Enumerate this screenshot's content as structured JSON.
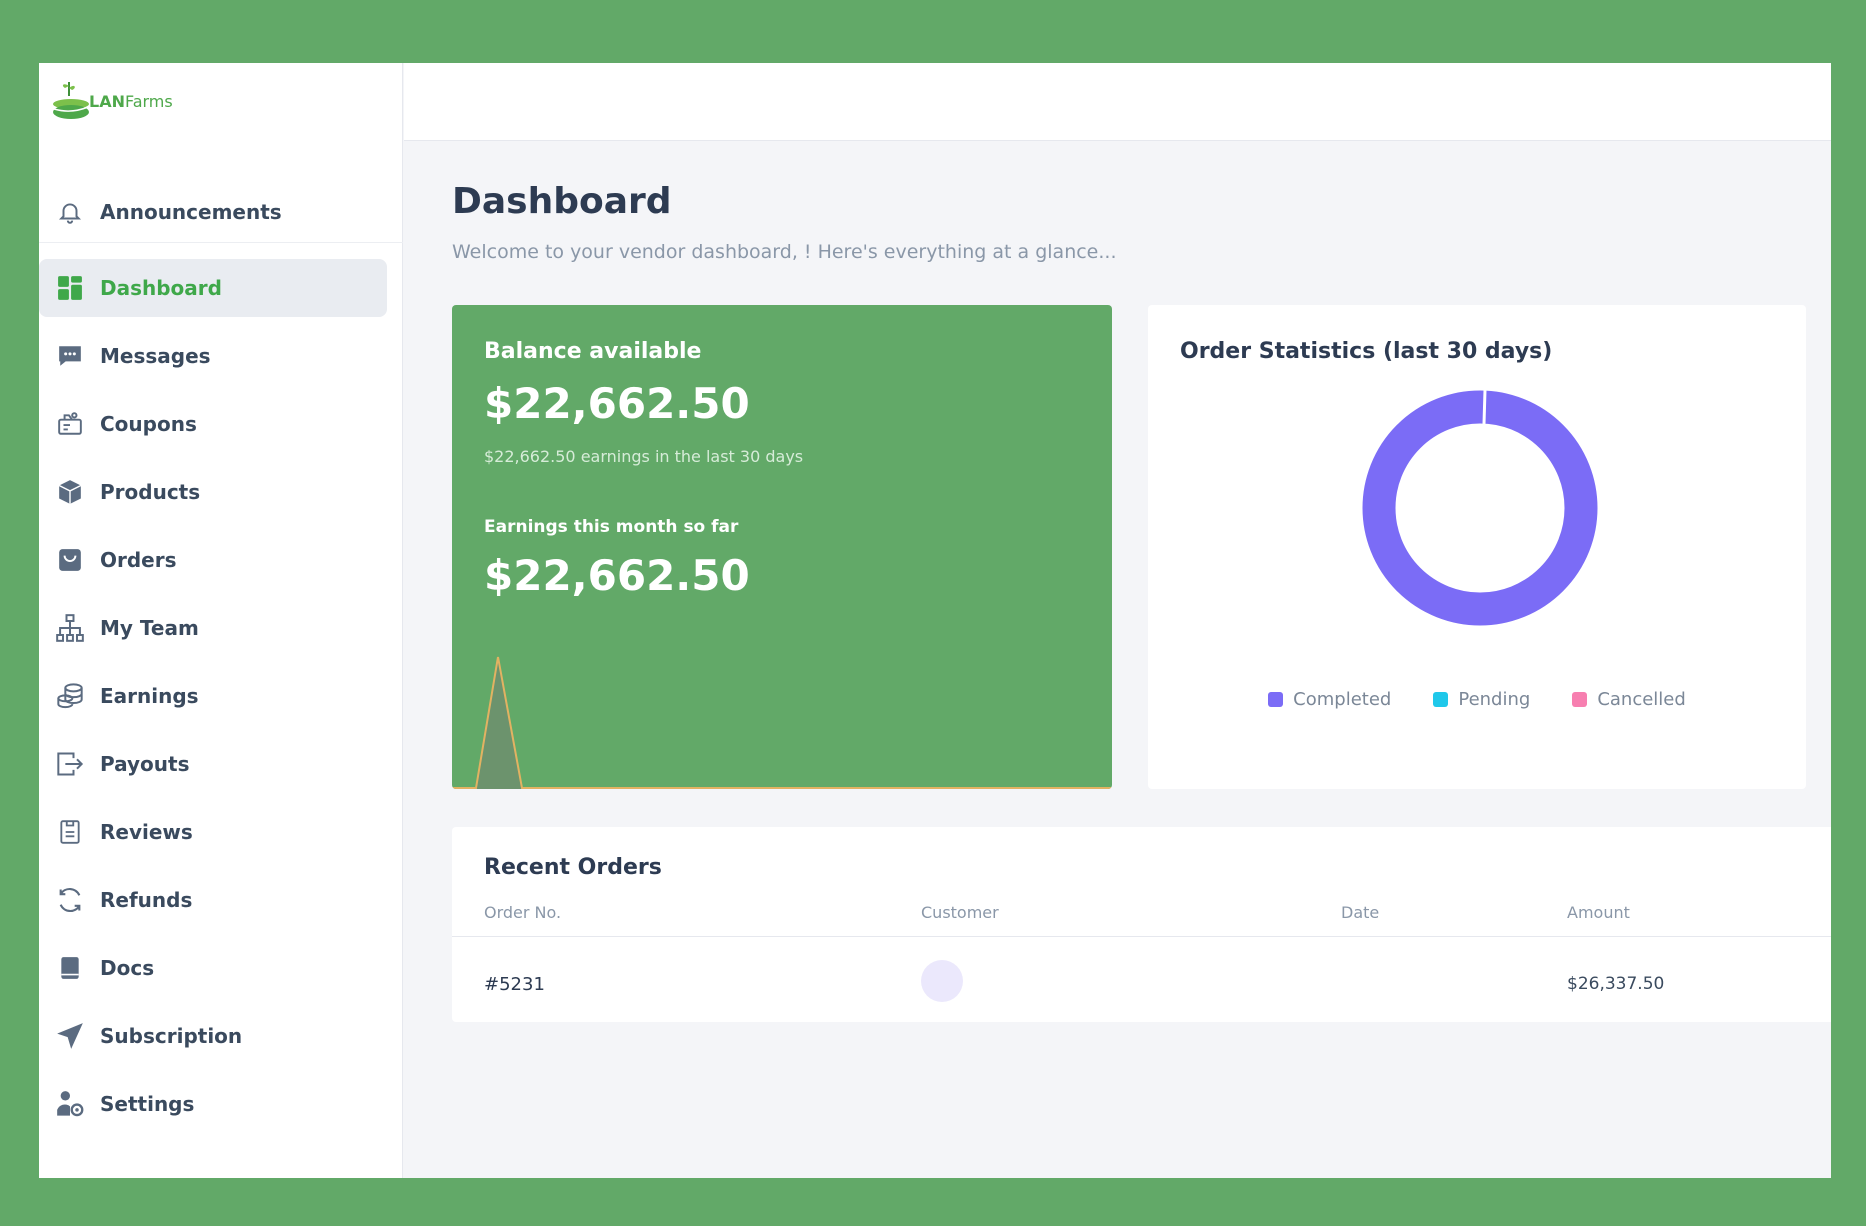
{
  "app": {
    "logo_bold": "LAN",
    "logo_light": "Farms"
  },
  "sidebar": {
    "announcements": {
      "label": "Announcements",
      "icon": "bell-icon"
    },
    "items": [
      {
        "label": "Dashboard",
        "icon": "grid-icon",
        "active": true
      },
      {
        "label": "Messages",
        "icon": "chat-icon"
      },
      {
        "label": "Coupons",
        "icon": "coupon-icon"
      },
      {
        "label": "Products",
        "icon": "box-icon"
      },
      {
        "label": "Orders",
        "icon": "bag-icon"
      },
      {
        "label": "My Team",
        "icon": "team-icon"
      },
      {
        "label": "Earnings",
        "icon": "coins-icon"
      },
      {
        "label": "Payouts",
        "icon": "payout-icon"
      },
      {
        "label": "Reviews",
        "icon": "clipboard-icon"
      },
      {
        "label": "Refunds",
        "icon": "refresh-icon"
      },
      {
        "label": "Docs",
        "icon": "book-icon"
      },
      {
        "label": "Subscription",
        "icon": "send-icon"
      },
      {
        "label": "Settings",
        "icon": "user-gear-icon"
      }
    ]
  },
  "header": {
    "title": "Dashboard",
    "subtitle": "Welcome to your vendor dashboard, ! Here's everything at a glance..."
  },
  "balance": {
    "label": "Balance available",
    "amount": "$22,662.50",
    "sub": "$22,662.50 earnings in the last 30 days",
    "month_label": "Earnings this month so far",
    "month_amount": "$22,662.50"
  },
  "stats": {
    "title": "Order Statistics (last 30 days)",
    "legend": [
      {
        "label": "Completed",
        "color": "#7b6cf6"
      },
      {
        "label": "Pending",
        "color": "#1fc8ea"
      },
      {
        "label": "Cancelled",
        "color": "#f77fb0"
      }
    ]
  },
  "orders": {
    "title": "Recent Orders",
    "columns": [
      "Order No.",
      "Customer",
      "Date",
      "Amount"
    ],
    "rows": [
      {
        "order_no": "#5231",
        "customer": "",
        "date": "",
        "amount": "$26,337.50"
      }
    ]
  },
  "colors": {
    "brand_green": "#62a968",
    "accent_green": "#3fa84a",
    "donut_purple": "#7b6cf6"
  }
}
